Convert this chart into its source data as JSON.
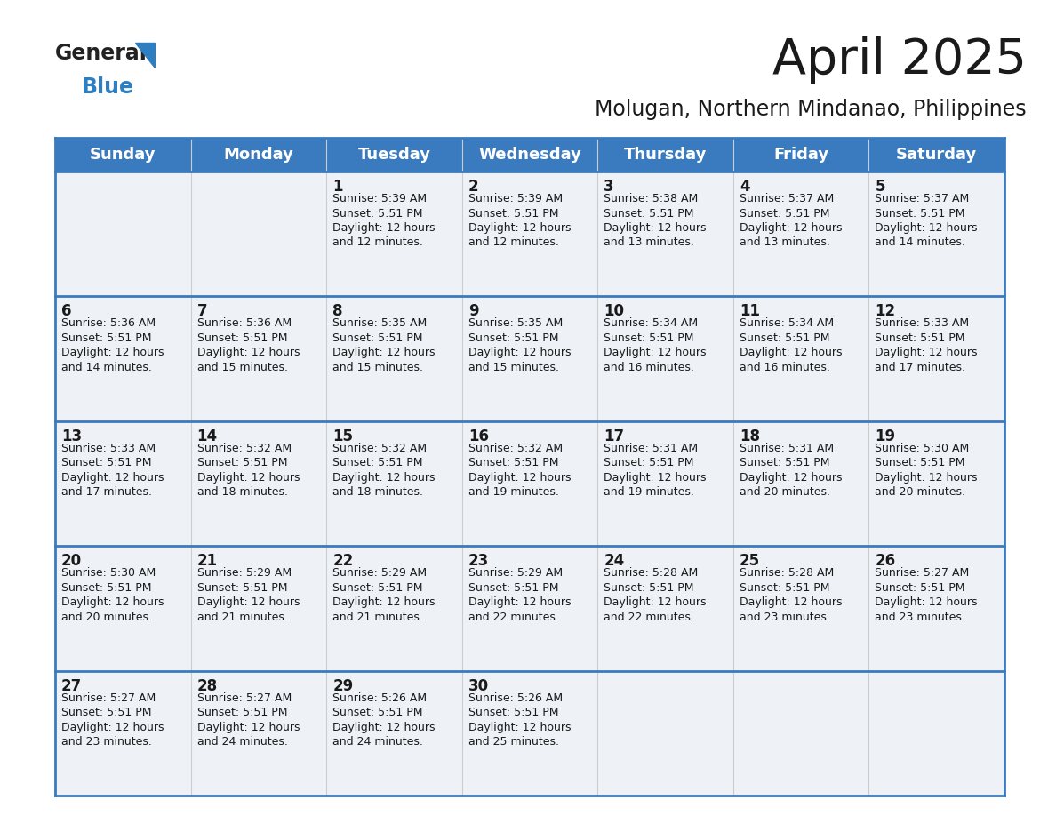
{
  "title": "April 2025",
  "subtitle": "Molugan, Northern Mindanao, Philippines",
  "header_bg": "#3a7bbf",
  "header_text_color": "#ffffff",
  "cell_bg_light": "#eef2f7",
  "border_color": "#3a7bbf",
  "row_border_color": "#3a7bbf",
  "text_color": "#1a1a1a",
  "day_names": [
    "Sunday",
    "Monday",
    "Tuesday",
    "Wednesday",
    "Thursday",
    "Friday",
    "Saturday"
  ],
  "days": [
    {
      "day": 1,
      "col": 2,
      "row": 0,
      "sunrise": "5:39 AM",
      "sunset": "5:51 PM",
      "daylight_suffix": "12 minutes."
    },
    {
      "day": 2,
      "col": 3,
      "row": 0,
      "sunrise": "5:39 AM",
      "sunset": "5:51 PM",
      "daylight_suffix": "12 minutes."
    },
    {
      "day": 3,
      "col": 4,
      "row": 0,
      "sunrise": "5:38 AM",
      "sunset": "5:51 PM",
      "daylight_suffix": "13 minutes."
    },
    {
      "day": 4,
      "col": 5,
      "row": 0,
      "sunrise": "5:37 AM",
      "sunset": "5:51 PM",
      "daylight_suffix": "13 minutes."
    },
    {
      "day": 5,
      "col": 6,
      "row": 0,
      "sunrise": "5:37 AM",
      "sunset": "5:51 PM",
      "daylight_suffix": "14 minutes."
    },
    {
      "day": 6,
      "col": 0,
      "row": 1,
      "sunrise": "5:36 AM",
      "sunset": "5:51 PM",
      "daylight_suffix": "14 minutes."
    },
    {
      "day": 7,
      "col": 1,
      "row": 1,
      "sunrise": "5:36 AM",
      "sunset": "5:51 PM",
      "daylight_suffix": "15 minutes."
    },
    {
      "day": 8,
      "col": 2,
      "row": 1,
      "sunrise": "5:35 AM",
      "sunset": "5:51 PM",
      "daylight_suffix": "15 minutes."
    },
    {
      "day": 9,
      "col": 3,
      "row": 1,
      "sunrise": "5:35 AM",
      "sunset": "5:51 PM",
      "daylight_suffix": "15 minutes."
    },
    {
      "day": 10,
      "col": 4,
      "row": 1,
      "sunrise": "5:34 AM",
      "sunset": "5:51 PM",
      "daylight_suffix": "16 minutes."
    },
    {
      "day": 11,
      "col": 5,
      "row": 1,
      "sunrise": "5:34 AM",
      "sunset": "5:51 PM",
      "daylight_suffix": "16 minutes."
    },
    {
      "day": 12,
      "col": 6,
      "row": 1,
      "sunrise": "5:33 AM",
      "sunset": "5:51 PM",
      "daylight_suffix": "17 minutes."
    },
    {
      "day": 13,
      "col": 0,
      "row": 2,
      "sunrise": "5:33 AM",
      "sunset": "5:51 PM",
      "daylight_suffix": "17 minutes."
    },
    {
      "day": 14,
      "col": 1,
      "row": 2,
      "sunrise": "5:32 AM",
      "sunset": "5:51 PM",
      "daylight_suffix": "18 minutes."
    },
    {
      "day": 15,
      "col": 2,
      "row": 2,
      "sunrise": "5:32 AM",
      "sunset": "5:51 PM",
      "daylight_suffix": "18 minutes."
    },
    {
      "day": 16,
      "col": 3,
      "row": 2,
      "sunrise": "5:32 AM",
      "sunset": "5:51 PM",
      "daylight_suffix": "19 minutes."
    },
    {
      "day": 17,
      "col": 4,
      "row": 2,
      "sunrise": "5:31 AM",
      "sunset": "5:51 PM",
      "daylight_suffix": "19 minutes."
    },
    {
      "day": 18,
      "col": 5,
      "row": 2,
      "sunrise": "5:31 AM",
      "sunset": "5:51 PM",
      "daylight_suffix": "20 minutes."
    },
    {
      "day": 19,
      "col": 6,
      "row": 2,
      "sunrise": "5:30 AM",
      "sunset": "5:51 PM",
      "daylight_suffix": "20 minutes."
    },
    {
      "day": 20,
      "col": 0,
      "row": 3,
      "sunrise": "5:30 AM",
      "sunset": "5:51 PM",
      "daylight_suffix": "20 minutes."
    },
    {
      "day": 21,
      "col": 1,
      "row": 3,
      "sunrise": "5:29 AM",
      "sunset": "5:51 PM",
      "daylight_suffix": "21 minutes."
    },
    {
      "day": 22,
      "col": 2,
      "row": 3,
      "sunrise": "5:29 AM",
      "sunset": "5:51 PM",
      "daylight_suffix": "21 minutes."
    },
    {
      "day": 23,
      "col": 3,
      "row": 3,
      "sunrise": "5:29 AM",
      "sunset": "5:51 PM",
      "daylight_suffix": "22 minutes."
    },
    {
      "day": 24,
      "col": 4,
      "row": 3,
      "sunrise": "5:28 AM",
      "sunset": "5:51 PM",
      "daylight_suffix": "22 minutes."
    },
    {
      "day": 25,
      "col": 5,
      "row": 3,
      "sunrise": "5:28 AM",
      "sunset": "5:51 PM",
      "daylight_suffix": "23 minutes."
    },
    {
      "day": 26,
      "col": 6,
      "row": 3,
      "sunrise": "5:27 AM",
      "sunset": "5:51 PM",
      "daylight_suffix": "23 minutes."
    },
    {
      "day": 27,
      "col": 0,
      "row": 4,
      "sunrise": "5:27 AM",
      "sunset": "5:51 PM",
      "daylight_suffix": "23 minutes."
    },
    {
      "day": 28,
      "col": 1,
      "row": 4,
      "sunrise": "5:27 AM",
      "sunset": "5:51 PM",
      "daylight_suffix": "24 minutes."
    },
    {
      "day": 29,
      "col": 2,
      "row": 4,
      "sunrise": "5:26 AM",
      "sunset": "5:51 PM",
      "daylight_suffix": "24 minutes."
    },
    {
      "day": 30,
      "col": 3,
      "row": 4,
      "sunrise": "5:26 AM",
      "sunset": "5:51 PM",
      "daylight_suffix": "25 minutes."
    }
  ]
}
